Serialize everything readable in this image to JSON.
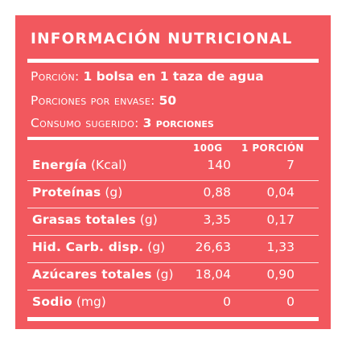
{
  "title": "INFORMACIÓN NUTRICIONAL",
  "serving": {
    "porcion_label": "Porción:",
    "porcion_value": "1 bolsa en 1 taza de agua",
    "porciones_label": "Porciones por envase:",
    "porciones_value": "50",
    "consumo_label": "Consumo sugerido:",
    "consumo_value": "3 porciones"
  },
  "columns": {
    "per100": "100G",
    "per_portion": "1 PORCIÓN"
  },
  "rows": [
    {
      "name": "Energía",
      "unit": "(Kcal)",
      "per100": "140",
      "per_portion": "7"
    },
    {
      "name": "Proteínas",
      "unit": "(g)",
      "per100": "0,88",
      "per_portion": "0,04"
    },
    {
      "name": "Grasas totales",
      "unit": "(g)",
      "per100": "3,35",
      "per_portion": "0,17"
    },
    {
      "name": "Hid. Carb. disp.",
      "unit": "(g)",
      "per100": "26,63",
      "per_portion": "1,33"
    },
    {
      "name": "Azúcares totales",
      "unit": "(g)",
      "per100": "18,04",
      "per_portion": "0,90"
    },
    {
      "name": "Sodio",
      "unit": "(mg)",
      "per100": "0",
      "per_portion": "0"
    }
  ],
  "colors": {
    "panel": "#f2585e",
    "text": "#ffffff"
  }
}
